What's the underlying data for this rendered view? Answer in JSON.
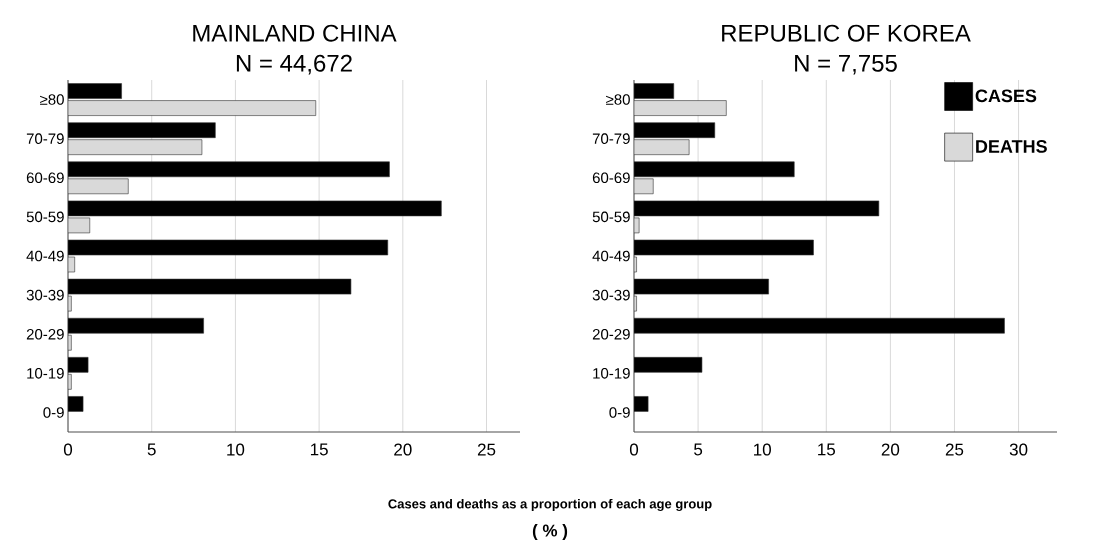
{
  "chart_data": [
    {
      "type": "bar",
      "orientation": "horizontal",
      "title": "MAINLAND CHINA",
      "subtitle": "N = 44,672",
      "xlabel": "Cases and deaths as a proportion of each age group",
      "annotations": [
        "( % )"
      ],
      "categories": [
        "≥80",
        "70-79",
        "60-69",
        "50-59",
        "40-49",
        "30-39",
        "20-29",
        "10-19",
        "0-9"
      ],
      "series": [
        {
          "color": "#000000",
          "values": [
            3.2,
            8.8,
            19.2,
            22.3,
            19.1,
            16.9,
            8.1,
            1.2,
            0.9
          ]
        },
        {
          "color": "#d9d9d9",
          "values": [
            14.8,
            8.0,
            3.6,
            1.3,
            0.4,
            0.2,
            0.2,
            0.2,
            null
          ]
        }
      ],
      "xlim": [
        0,
        27
      ],
      "xticks": [
        0,
        5,
        10,
        15,
        20,
        25
      ],
      "grid": "x"
    },
    {
      "type": "bar",
      "orientation": "horizontal",
      "title": "REPUBLIC OF KOREA",
      "subtitle": "N = 7,755",
      "categories": [
        "≥80",
        "70-79",
        "60-69",
        "50-59",
        "40-49",
        "30-39",
        "20-29",
        "10-19",
        "0-9"
      ],
      "series": [
        {
          "name": "CASES",
          "color": "#000000",
          "values": [
            3.1,
            6.3,
            12.5,
            19.1,
            14.0,
            10.5,
            28.9,
            5.3,
            1.1
          ]
        },
        {
          "name": "DEATHS",
          "color": "#d9d9d9",
          "values": [
            7.2,
            4.3,
            1.5,
            0.4,
            0.2,
            0.2,
            null,
            null,
            null
          ]
        }
      ],
      "xlim": [
        0,
        33
      ],
      "xticks": [
        0,
        5,
        10,
        15,
        20,
        25,
        30
      ],
      "grid": "x",
      "legend": "top right"
    }
  ]
}
